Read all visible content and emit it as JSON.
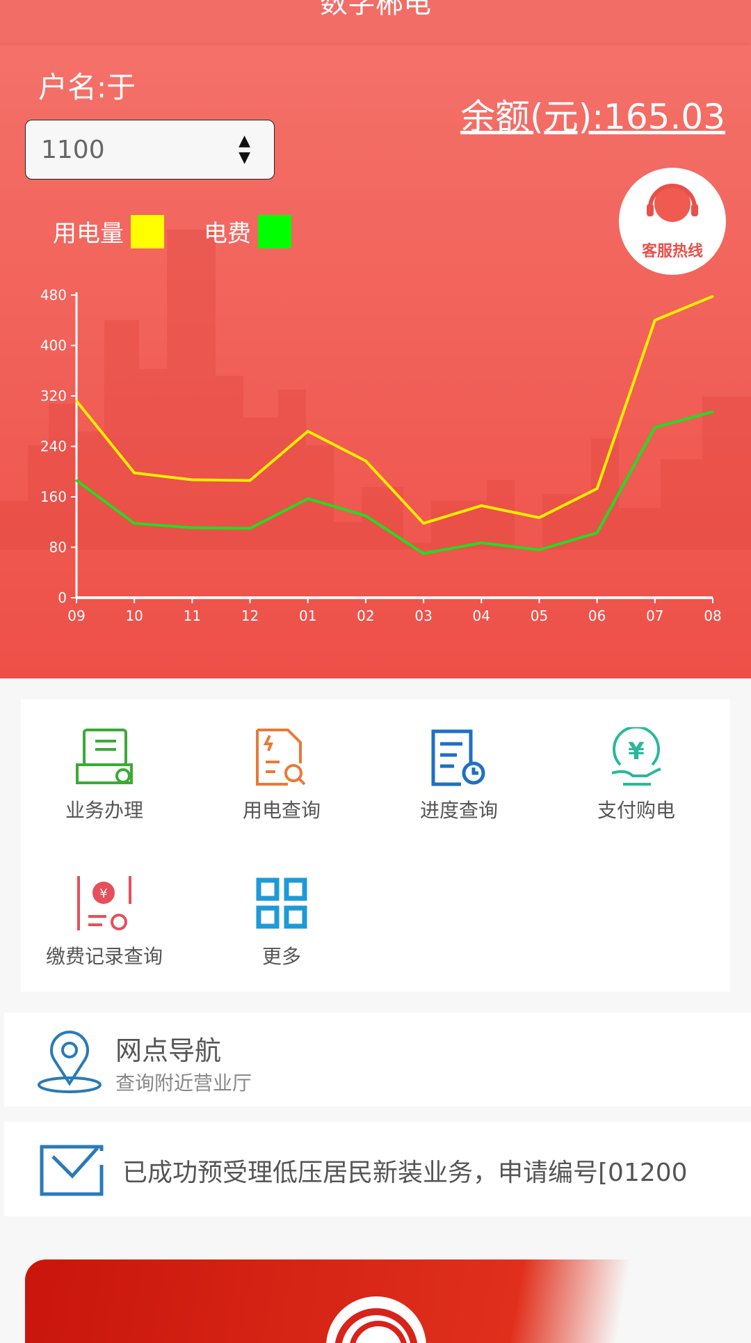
{
  "header": {
    "title": "数字郴电"
  },
  "account": {
    "name_label": "户名:于",
    "balance": "余额(元):165.03",
    "account_number": "1100"
  },
  "legend": {
    "usage": "用电量",
    "fee": "电费",
    "usage_color": "#ffff00",
    "fee_color": "#00ff00"
  },
  "service_button": {
    "label": "客服热线"
  },
  "chart_data": {
    "type": "line",
    "categories": [
      "09",
      "10",
      "11",
      "12",
      "01",
      "02",
      "03",
      "04",
      "05",
      "06",
      "07",
      "08"
    ],
    "yticks": [
      "0",
      "80",
      "160",
      "240",
      "320",
      "400",
      "480"
    ],
    "ylim": [
      0,
      480
    ],
    "series": [
      {
        "name": "用电量",
        "color": "#ffee00",
        "values": [
          312,
          198,
          187,
          186,
          264,
          217,
          118,
          146,
          127,
          173,
          440,
          478
        ]
      },
      {
        "name": "电费",
        "color": "#22dd22",
        "values": [
          186,
          118,
          111,
          110,
          157,
          130,
          70,
          87,
          76,
          103,
          270,
          295
        ]
      }
    ]
  },
  "services": [
    {
      "label": "业务办理",
      "icon": "business-icon"
    },
    {
      "label": "用电查询",
      "icon": "usage-query-icon"
    },
    {
      "label": "进度查询",
      "icon": "progress-query-icon"
    },
    {
      "label": "支付购电",
      "icon": "payment-icon"
    },
    {
      "label": "缴费记录查询",
      "icon": "payment-record-icon"
    },
    {
      "label": "更多",
      "icon": "more-grid-icon"
    }
  ],
  "nav": {
    "title": "网点导航",
    "subtitle": "查询附近营业厅"
  },
  "message": {
    "text": "已成功预受理低压居民新装业务，申请编号[01200"
  }
}
